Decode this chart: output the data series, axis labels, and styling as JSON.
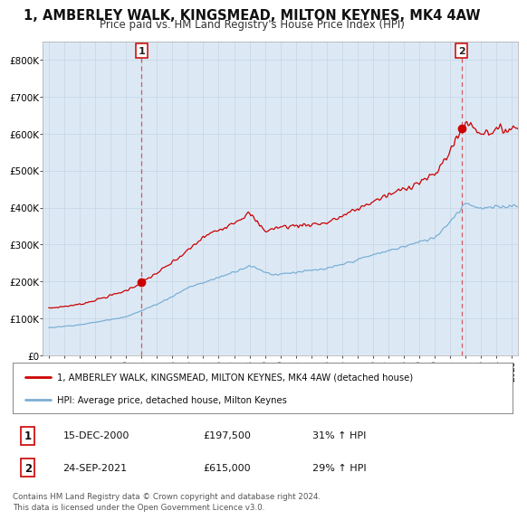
{
  "title": "1, AMBERLEY WALK, KINGSMEAD, MILTON KEYNES, MK4 4AW",
  "subtitle": "Price paid vs. HM Land Registry's House Price Index (HPI)",
  "title_fontsize": 10.5,
  "subtitle_fontsize": 8.5,
  "background_color": "#dce9f5",
  "fig_bg_color": "#ffffff",
  "red_line_color": "#cc0000",
  "blue_line_color": "#7bafd4",
  "dashed_line_color": "#cc0000",
  "marker_color": "#cc0000",
  "ylim": [
    0,
    850000
  ],
  "yticks": [
    0,
    100000,
    200000,
    300000,
    400000,
    500000,
    600000,
    700000,
    800000
  ],
  "ytick_labels": [
    "£0",
    "£100K",
    "£200K",
    "£300K",
    "£400K",
    "£500K",
    "£600K",
    "£700K",
    "£800K"
  ],
  "point1_x": 2001.0,
  "point1_y": 197500,
  "point2_x": 2021.73,
  "point2_y": 615000,
  "legend_label_red": "1, AMBERLEY WALK, KINGSMEAD, MILTON KEYNES, MK4 4AW (detached house)",
  "legend_label_blue": "HPI: Average price, detached house, Milton Keynes",
  "point1_date": "15-DEC-2000",
  "point1_price": "£197,500",
  "point1_hpi": "31% ↑ HPI",
  "point2_date": "24-SEP-2021",
  "point2_price": "£615,000",
  "point2_hpi": "29% ↑ HPI",
  "footer_text": "Contains HM Land Registry data © Crown copyright and database right 2024.\nThis data is licensed under the Open Government Licence v3.0.",
  "xmin": 1994.6,
  "xmax": 2025.4,
  "xtick_years": [
    1995,
    1996,
    1997,
    1998,
    1999,
    2000,
    2001,
    2002,
    2003,
    2004,
    2005,
    2006,
    2007,
    2008,
    2009,
    2010,
    2011,
    2012,
    2013,
    2014,
    2015,
    2016,
    2017,
    2018,
    2019,
    2020,
    2021,
    2022,
    2023,
    2024,
    2025
  ]
}
